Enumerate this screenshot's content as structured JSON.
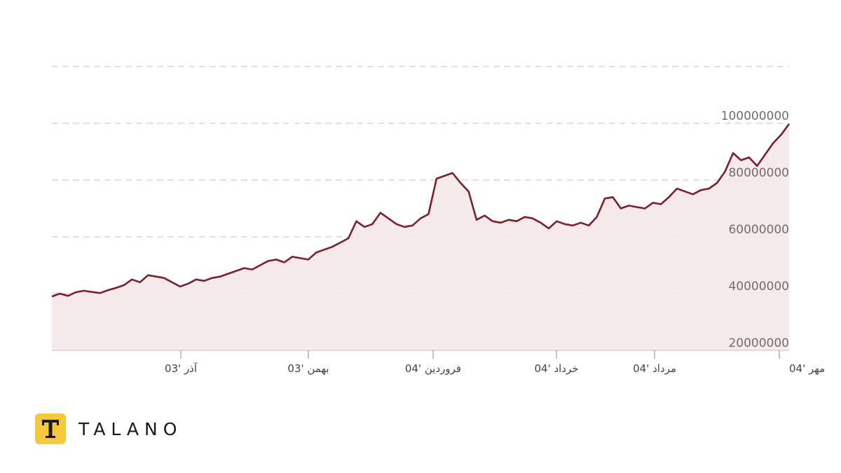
{
  "chart_data": {
    "type": "area",
    "title": "",
    "xlabel": "",
    "ylabel": "",
    "ylim": [
      20000000,
      120000000
    ],
    "y_ticks": [
      "100000000",
      "80000000",
      "60000000",
      "40000000",
      "20000000"
    ],
    "x_ticks": [
      "آذر '03",
      "بهمن '03",
      "فروردین '04",
      "خرداد '04",
      "مرداد '04",
      "مهر '04"
    ],
    "grid": true,
    "colors": {
      "line": "#7a1f2b",
      "fill": "#f5e6e6",
      "grid": "#d5d5d5"
    },
    "series": [
      {
        "values": [
          39000000,
          40000000,
          39200000,
          40500000,
          41000000,
          40600000,
          40200000,
          41200000,
          42000000,
          43000000,
          45000000,
          44000000,
          46500000,
          46000000,
          45500000,
          44000000,
          42500000,
          43500000,
          45000000,
          44500000,
          45500000,
          46000000,
          47000000,
          48000000,
          49000000,
          48500000,
          50000000,
          51500000,
          52000000,
          51000000,
          53000000,
          52500000,
          52000000,
          54500000,
          55500000,
          56500000,
          58000000,
          59500000,
          65500000,
          63500000,
          64500000,
          68500000,
          66500000,
          64500000,
          63500000,
          64000000,
          66500000,
          68000000,
          80500000,
          81500000,
          82500000,
          79000000,
          76000000,
          66000000,
          67500000,
          65500000,
          65000000,
          66000000,
          65500000,
          67000000,
          66500000,
          65000000,
          63000000,
          65500000,
          64500000,
          64000000,
          65000000,
          64000000,
          67000000,
          73500000,
          74000000,
          70000000,
          71000000,
          70500000,
          70000000,
          72000000,
          71500000,
          74000000,
          77000000,
          76000000,
          75000000,
          76500000,
          77000000,
          79000000,
          83000000,
          89500000,
          87000000,
          88000000,
          85000000,
          89000000,
          93000000,
          96000000,
          99800000
        ]
      }
    ]
  },
  "brand": {
    "name": "TALANO",
    "badge_letter": "T"
  }
}
